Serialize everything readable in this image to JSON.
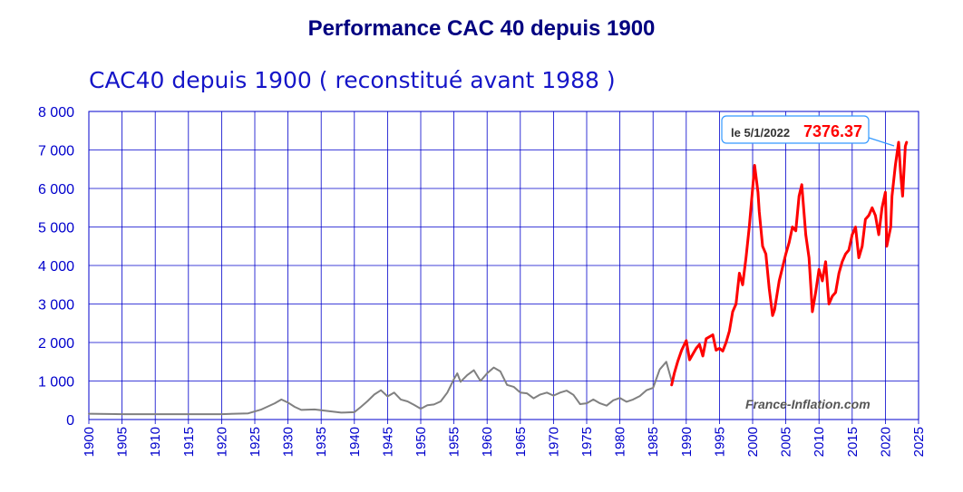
{
  "page_title": "Performance CAC 40 depuis 1900",
  "chart_data": {
    "type": "line",
    "title": "CAC40 depuis 1900 ( reconstitué avant 1988 )",
    "xlabel": "",
    "ylabel": "",
    "xlim": [
      1900,
      2025
    ],
    "ylim": [
      0,
      8000
    ],
    "grid": true,
    "x_ticks": [
      "1900",
      "1905",
      "1910",
      "1915",
      "1920",
      "1925",
      "1930",
      "1935",
      "1940",
      "1945",
      "1950",
      "1955",
      "1960",
      "1965",
      "1970",
      "1975",
      "1980",
      "1985",
      "1990",
      "1995",
      "2000",
      "2005",
      "2010",
      "2015",
      "2020",
      "2025"
    ],
    "y_ticks": [
      "0",
      "1 000",
      "2 000",
      "3 000",
      "4 000",
      "5 000",
      "6 000",
      "7 000",
      "8 000"
    ],
    "watermark": "France-Inflation.com",
    "annotation": {
      "date": "le 5/1/2022",
      "value": "7376.37",
      "x": 2022.0,
      "y": 7376.37
    },
    "series": [
      {
        "color": "#808080",
        "points": [
          [
            1900,
            150
          ],
          [
            1905,
            140
          ],
          [
            1910,
            140
          ],
          [
            1915,
            140
          ],
          [
            1920,
            140
          ],
          [
            1924,
            160
          ],
          [
            1926,
            260
          ],
          [
            1928,
            420
          ],
          [
            1929,
            520
          ],
          [
            1930,
            440
          ],
          [
            1931,
            330
          ],
          [
            1932,
            250
          ],
          [
            1934,
            260
          ],
          [
            1936,
            220
          ],
          [
            1938,
            180
          ],
          [
            1940,
            190
          ],
          [
            1941,
            330
          ],
          [
            1942,
            480
          ],
          [
            1943,
            650
          ],
          [
            1944,
            760
          ],
          [
            1945,
            600
          ],
          [
            1946,
            700
          ],
          [
            1947,
            520
          ],
          [
            1948,
            470
          ],
          [
            1949,
            380
          ],
          [
            1950,
            280
          ],
          [
            1951,
            370
          ],
          [
            1952,
            390
          ],
          [
            1953,
            470
          ],
          [
            1954,
            700
          ],
          [
            1955,
            1050
          ],
          [
            1955.5,
            1200
          ],
          [
            1956,
            980
          ],
          [
            1957,
            1150
          ],
          [
            1958,
            1280
          ],
          [
            1959,
            1000
          ],
          [
            1960,
            1200
          ],
          [
            1961,
            1350
          ],
          [
            1962,
            1250
          ],
          [
            1963,
            900
          ],
          [
            1964,
            850
          ],
          [
            1965,
            700
          ],
          [
            1966,
            680
          ],
          [
            1967,
            550
          ],
          [
            1968,
            650
          ],
          [
            1969,
            700
          ],
          [
            1970,
            620
          ],
          [
            1971,
            700
          ],
          [
            1972,
            750
          ],
          [
            1973,
            640
          ],
          [
            1974,
            400
          ],
          [
            1975,
            420
          ],
          [
            1976,
            520
          ],
          [
            1977,
            420
          ],
          [
            1978,
            360
          ],
          [
            1979,
            500
          ],
          [
            1980,
            560
          ],
          [
            1981,
            460
          ],
          [
            1982,
            520
          ],
          [
            1983,
            610
          ],
          [
            1984,
            760
          ],
          [
            1985,
            820
          ],
          [
            1986,
            1300
          ],
          [
            1987,
            1500
          ],
          [
            1987.8,
            1000
          ]
        ]
      },
      {
        "color": "#ff0000",
        "points": [
          [
            1987.8,
            900
          ],
          [
            1988.2,
            1200
          ],
          [
            1988.7,
            1500
          ],
          [
            1989.3,
            1800
          ],
          [
            1990,
            2050
          ],
          [
            1990.5,
            1550
          ],
          [
            1991,
            1700
          ],
          [
            1991.5,
            1850
          ],
          [
            1992,
            1950
          ],
          [
            1992.5,
            1650
          ],
          [
            1993,
            2100
          ],
          [
            1994,
            2200
          ],
          [
            1994.5,
            1800
          ],
          [
            1995,
            1850
          ],
          [
            1995.5,
            1780
          ],
          [
            1996,
            2000
          ],
          [
            1996.5,
            2300
          ],
          [
            1997,
            2800
          ],
          [
            1997.5,
            3000
          ],
          [
            1998,
            3800
          ],
          [
            1998.5,
            3500
          ],
          [
            1999,
            4200
          ],
          [
            1999.5,
            5000
          ],
          [
            2000,
            6000
          ],
          [
            2000.3,
            6600
          ],
          [
            2000.8,
            5900
          ],
          [
            2001,
            5400
          ],
          [
            2001.5,
            4500
          ],
          [
            2002,
            4300
          ],
          [
            2002.5,
            3400
          ],
          [
            2003,
            2700
          ],
          [
            2003.3,
            2850
          ],
          [
            2004,
            3600
          ],
          [
            2005,
            4300
          ],
          [
            2005.5,
            4600
          ],
          [
            2006,
            5000
          ],
          [
            2006.5,
            4900
          ],
          [
            2007,
            5800
          ],
          [
            2007.4,
            6100
          ],
          [
            2008,
            4800
          ],
          [
            2008.5,
            4200
          ],
          [
            2009,
            2800
          ],
          [
            2009.5,
            3300
          ],
          [
            2010,
            3900
          ],
          [
            2010.5,
            3600
          ],
          [
            2011,
            4100
          ],
          [
            2011.5,
            3000
          ],
          [
            2012,
            3200
          ],
          [
            2012.5,
            3300
          ],
          [
            2013,
            3800
          ],
          [
            2013.5,
            4100
          ],
          [
            2014,
            4300
          ],
          [
            2014.5,
            4400
          ],
          [
            2015,
            4800
          ],
          [
            2015.5,
            5000
          ],
          [
            2016,
            4200
          ],
          [
            2016.5,
            4500
          ],
          [
            2017,
            5200
          ],
          [
            2017.5,
            5300
          ],
          [
            2018,
            5500
          ],
          [
            2018.5,
            5300
          ],
          [
            2019,
            4800
          ],
          [
            2019.5,
            5500
          ],
          [
            2020,
            5900
          ],
          [
            2020.2,
            4500
          ],
          [
            2020.8,
            5000
          ],
          [
            2021,
            5800
          ],
          [
            2021.5,
            6600
          ],
          [
            2022,
            7200
          ],
          [
            2022.3,
            6400
          ],
          [
            2022.6,
            5800
          ],
          [
            2023,
            7100
          ],
          [
            2023.2,
            7200
          ]
        ]
      }
    ]
  }
}
